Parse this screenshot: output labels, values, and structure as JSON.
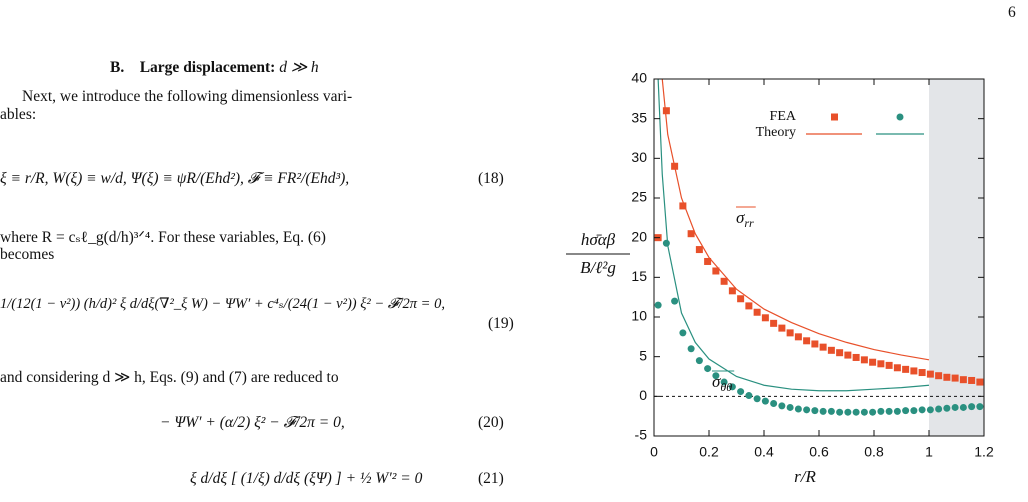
{
  "page_number": "6",
  "section": {
    "label": "B.",
    "title": "Large displacement:",
    "condition": "d ≫ h"
  },
  "paragraphs": [
    [
      "Next, we introduce the following dimensionless vari-",
      "ables:"
    ],
    [
      "where R = cₛℓ_g(d/h)³ᐟ⁴. For these variables, Eq. (6)",
      "becomes"
    ],
    [
      "and considering d ≫ h, Eqs. (9) and (7) are reduced to"
    ]
  ],
  "equations": [
    {
      "text": "ξ ≡ r/R,   W(ξ) ≡ w/d,   Ψ(ξ) ≡ ψR/(Ehd²),   𝓕 ≡ FR²/(Ehd³),",
      "number": "(18)"
    },
    {
      "text": "1/(12(1 − ν²)) (h/d)² ξ d/dξ(∇²_ξ W) − ΨW′ + c⁴ₛ/(24(1 − ν²)) ξ² − 𝓕/2π = 0,",
      "number": "(19)"
    },
    {
      "text": "− ΨW′ + (α/2) ξ² − 𝓕/2π = 0,",
      "number": "(20)"
    },
    {
      "text": "ξ d/dξ [ (1/ξ) d/dξ (ξΨ) ] + ½ W′² = 0",
      "number": "(21)"
    }
  ],
  "chart_data": {
    "type": "scatter",
    "xlabel": "r/R",
    "ylabel": {
      "numerator": "hσ̄αβ",
      "denominator": "B/ℓ²g"
    },
    "xlim": [
      0,
      1.2
    ],
    "ylim": [
      -5,
      40
    ],
    "xticks": [
      0,
      0.2,
      0.4,
      0.6,
      0.8,
      1,
      1.2
    ],
    "yticks": [
      -5,
      0,
      5,
      10,
      15,
      20,
      25,
      30,
      35,
      40
    ],
    "shaded_region": [
      1,
      1.2
    ],
    "reference_line": 0,
    "legend": {
      "rows": [
        "FEA",
        "Theory"
      ],
      "corner": "upper right"
    },
    "annotations": [
      {
        "symbol": "σ",
        "sub": "rr",
        "color": "#e8502a"
      },
      {
        "symbol": "σ",
        "sub": "θθ",
        "color": "#2a9080"
      }
    ],
    "series": [
      {
        "kind": "points",
        "marker": "square",
        "color": "#e8502a",
        "x": [
          0.015,
          0.045,
          0.075,
          0.105,
          0.135,
          0.165,
          0.195,
          0.225,
          0.255,
          0.285,
          0.315,
          0.345,
          0.375,
          0.405,
          0.435,
          0.465,
          0.495,
          0.525,
          0.555,
          0.585,
          0.615,
          0.645,
          0.675,
          0.705,
          0.735,
          0.765,
          0.795,
          0.825,
          0.855,
          0.885,
          0.915,
          0.945,
          0.975,
          1.005,
          1.035,
          1.065,
          1.095,
          1.125,
          1.155,
          1.185
        ],
        "values": [
          20,
          36,
          29,
          24,
          20.5,
          18.5,
          17,
          15.8,
          14.5,
          13.3,
          12.3,
          11.4,
          10.6,
          9.9,
          9.2,
          8.6,
          8.0,
          7.5,
          7.0,
          6.6,
          6.2,
          5.8,
          5.5,
          5.2,
          4.9,
          4.6,
          4.3,
          4.1,
          3.9,
          3.6,
          3.4,
          3.2,
          3.0,
          2.8,
          2.6,
          2.4,
          2.3,
          2.1,
          2.0,
          1.8
        ]
      },
      {
        "kind": "line",
        "color": "#e8502a",
        "x": [
          0.03,
          0.05,
          0.1,
          0.15,
          0.2,
          0.3,
          0.4,
          0.5,
          0.6,
          0.7,
          0.8,
          0.9,
          1.0
        ],
        "values": [
          40,
          33,
          25,
          20.5,
          17.5,
          13.5,
          11,
          9.3,
          7.9,
          6.8,
          5.9,
          5.2,
          4.6
        ]
      },
      {
        "kind": "points",
        "marker": "circle",
        "color": "#2a9080",
        "x": [
          0.015,
          0.045,
          0.075,
          0.105,
          0.135,
          0.165,
          0.195,
          0.225,
          0.255,
          0.285,
          0.315,
          0.345,
          0.375,
          0.405,
          0.435,
          0.465,
          0.495,
          0.525,
          0.555,
          0.585,
          0.615,
          0.645,
          0.675,
          0.705,
          0.735,
          0.765,
          0.795,
          0.825,
          0.855,
          0.885,
          0.915,
          0.945,
          0.975,
          1.005,
          1.035,
          1.065,
          1.095,
          1.125,
          1.155,
          1.185
        ],
        "values": [
          11.5,
          19.3,
          12,
          8,
          6,
          4.5,
          3.5,
          2.6,
          1.8,
          1.2,
          0.6,
          0.1,
          -0.3,
          -0.6,
          -0.9,
          -1.2,
          -1.4,
          -1.6,
          -1.7,
          -1.8,
          -1.9,
          -1.9,
          -2,
          -2,
          -2,
          -2,
          -2,
          -1.9,
          -1.9,
          -1.9,
          -1.8,
          -1.8,
          -1.7,
          -1.7,
          -1.6,
          -1.5,
          -1.4,
          -1.4,
          -1.3,
          -1.3
        ]
      },
      {
        "kind": "line",
        "color": "#2a9080",
        "x": [
          0.015,
          0.03,
          0.05,
          0.1,
          0.15,
          0.2,
          0.3,
          0.4,
          0.5,
          0.6,
          0.7,
          0.8,
          0.9,
          1.0
        ],
        "values": [
          40,
          28,
          19,
          10.5,
          6.8,
          4.7,
          2.5,
          1.4,
          0.9,
          0.7,
          0.7,
          0.9,
          1.1,
          1.4
        ]
      }
    ]
  }
}
